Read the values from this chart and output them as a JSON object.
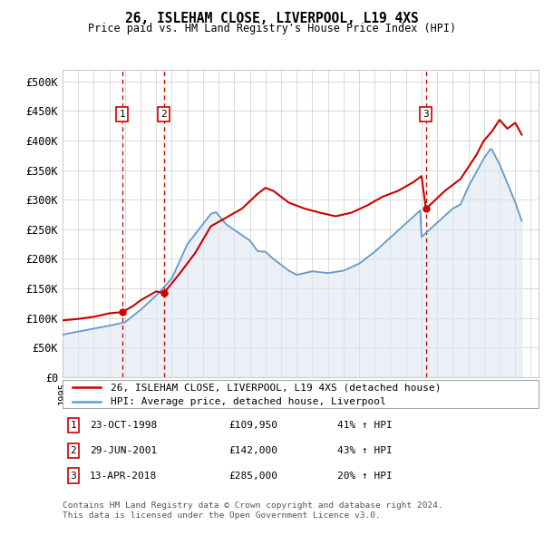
{
  "title": "26, ISLEHAM CLOSE, LIVERPOOL, L19 4XS",
  "subtitle": "Price paid vs. HM Land Registry's House Price Index (HPI)",
  "xlim_start": 1995.0,
  "xlim_end": 2025.5,
  "ylim_min": 0,
  "ylim_max": 520000,
  "yticks": [
    0,
    50000,
    100000,
    150000,
    200000,
    250000,
    300000,
    350000,
    400000,
    450000,
    500000
  ],
  "ytick_labels": [
    "£0",
    "£50K",
    "£100K",
    "£150K",
    "£200K",
    "£250K",
    "£300K",
    "£350K",
    "£400K",
    "£450K",
    "£500K"
  ],
  "price_paid": [
    {
      "year": 1998.81,
      "price": 109950,
      "label": "1"
    },
    {
      "year": 2001.49,
      "price": 142000,
      "label": "2"
    },
    {
      "year": 2018.28,
      "price": 285000,
      "label": "3"
    }
  ],
  "legend_price": "26, ISLEHAM CLOSE, LIVERPOOL, L19 4XS (detached house)",
  "legend_hpi": "HPI: Average price, detached house, Liverpool",
  "table_rows": [
    {
      "num": "1",
      "date": "23-OCT-1998",
      "price": "£109,950",
      "change": "41% ↑ HPI"
    },
    {
      "num": "2",
      "date": "29-JUN-2001",
      "price": "£142,000",
      "change": "43% ↑ HPI"
    },
    {
      "num": "3",
      "date": "13-APR-2018",
      "price": "£285,000",
      "change": "20% ↑ HPI"
    }
  ],
  "footer": "Contains HM Land Registry data © Crown copyright and database right 2024.\nThis data is licensed under the Open Government Licence v3.0.",
  "price_line_color": "#cc0000",
  "hpi_line_color": "#6699cc",
  "vline_color": "#cc0000",
  "shade_color": "#dce6f1",
  "box_color": "#cc0000"
}
